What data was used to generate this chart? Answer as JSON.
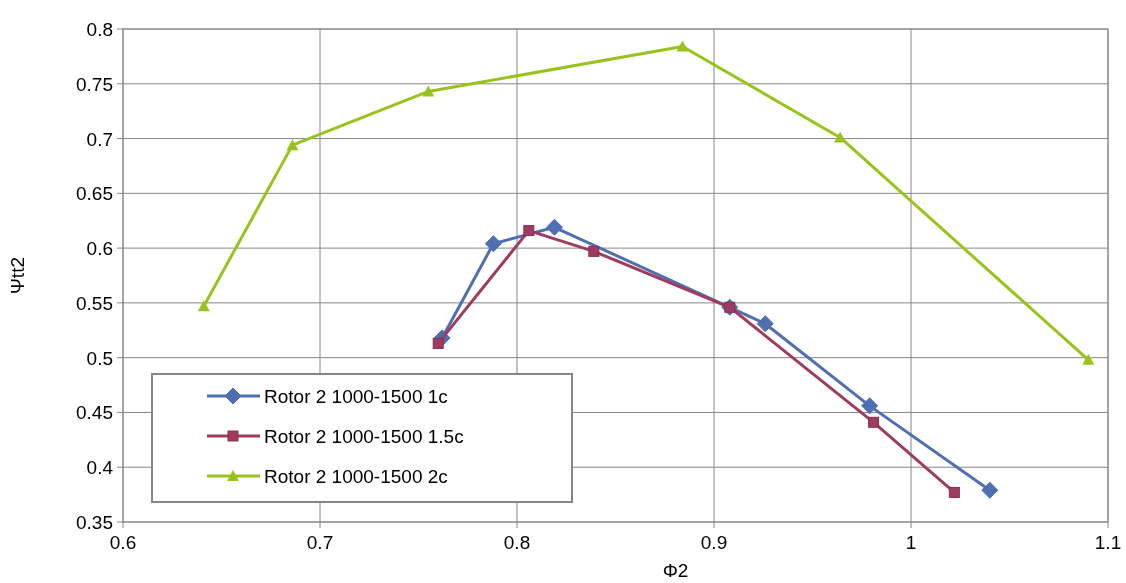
{
  "chart_data": {
    "type": "line",
    "xlabel": "Φ2",
    "ylabel": "Ψtt2",
    "xlim": [
      0.6,
      1.1
    ],
    "xticks": [
      0.6,
      0.7,
      0.8,
      0.9,
      1,
      1.1
    ],
    "ylim": [
      0.35,
      0.8
    ],
    "yticks": [
      0.35,
      0.4,
      0.45,
      0.5,
      0.55,
      0.6,
      0.65,
      0.7,
      0.75,
      0.8
    ],
    "grid": true,
    "legend": "bottom left",
    "series": [
      {
        "name": "Rotor 2 1000-1500 1c",
        "color": "#4f6fb0",
        "marker": "diamond",
        "x": [
          0.762,
          0.788,
          0.819,
          0.908,
          0.926,
          0.979,
          1.04
        ],
        "values": [
          0.518,
          0.604,
          0.619,
          0.546,
          0.531,
          0.456,
          0.379
        ]
      },
      {
        "name": "Rotor 2 1000-1500 1.5c",
        "color": "#a03b5f",
        "marker": "square",
        "x": [
          0.76,
          0.806,
          0.839,
          0.908,
          0.981,
          1.022
        ],
        "values": [
          0.513,
          0.616,
          0.597,
          0.546,
          0.441,
          0.377
        ]
      },
      {
        "name": "Rotor 2 1000-1500 2c",
        "color": "#99c31c",
        "marker": "triangle",
        "x": [
          0.641,
          0.686,
          0.755,
          0.884,
          0.964,
          1.09
        ],
        "values": [
          0.547,
          0.694,
          0.743,
          0.784,
          0.701,
          0.498
        ]
      }
    ]
  }
}
